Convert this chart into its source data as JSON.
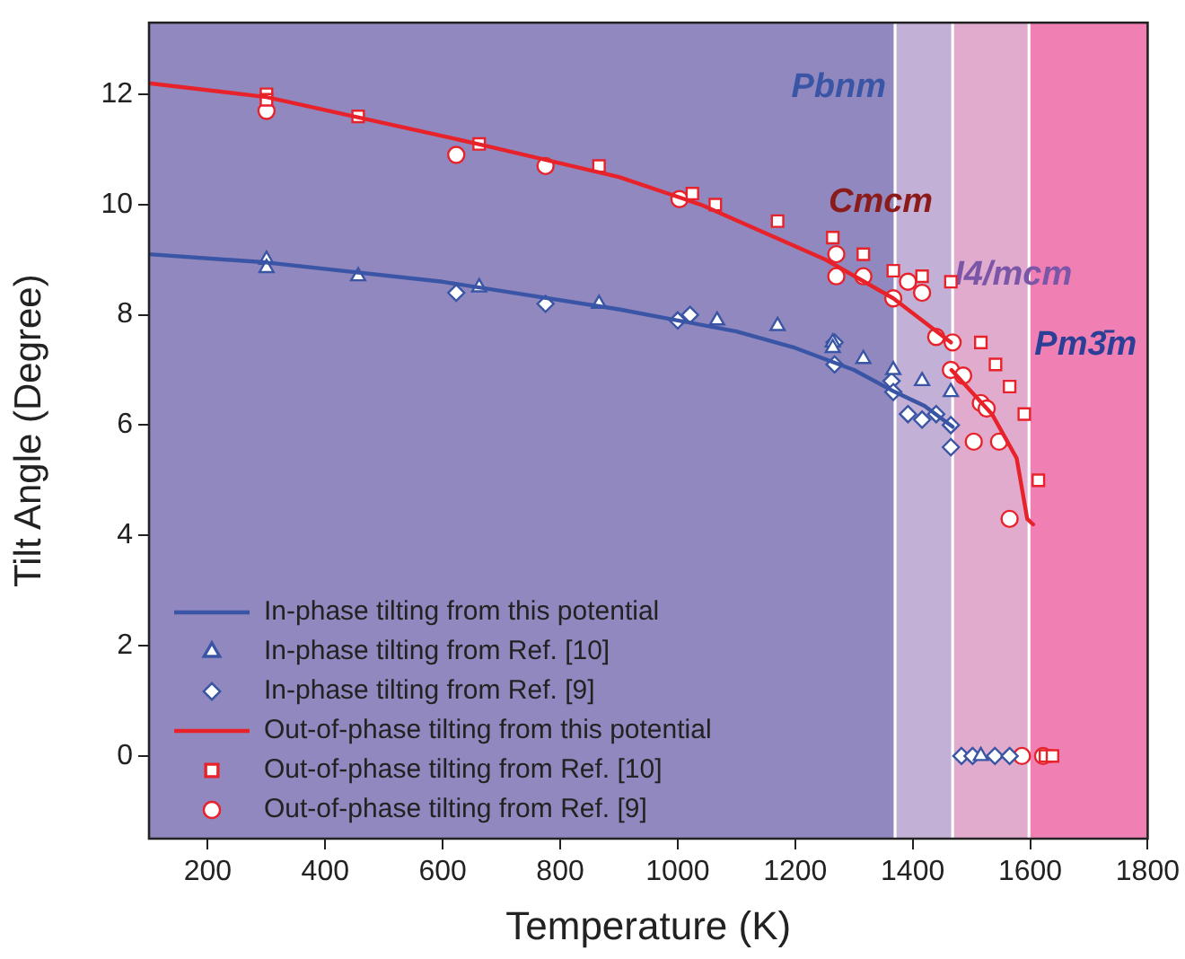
{
  "chart_data": {
    "type": "scatter",
    "xlabel": "Temperature (K)",
    "ylabel": "Tilt Angle (Degree)",
    "xlim": [
      100,
      1800
    ],
    "xticks": [
      200,
      400,
      600,
      800,
      1000,
      1200,
      1400,
      1600,
      1800
    ],
    "ylim": [
      -1.5,
      13.3
    ],
    "yticks": [
      0,
      2,
      4,
      6,
      8,
      10,
      12
    ],
    "grid": false,
    "legend": "bottom left",
    "bands": [
      {
        "axis": "x",
        "from": 100,
        "to": 1370,
        "label": "Pbnm",
        "color": "#9088be"
      },
      {
        "axis": "x",
        "from": 1370,
        "to": 1468,
        "label": "Cmcm",
        "color": "#c3b0d6"
      },
      {
        "axis": "x",
        "from": 1468,
        "to": 1598,
        "label": "I4/mcm",
        "color": "#e0abcd"
      },
      {
        "axis": "x",
        "from": 1598,
        "to": 1800,
        "label": "Pm3̄m",
        "color": "#f080b4"
      }
    ],
    "series": [
      {
        "name": "In-phase tilting from this potential",
        "type": "line",
        "marker": "none",
        "color": "#3a55a5",
        "x": [
          100,
          300,
          600,
          900,
          1000,
          1100,
          1200,
          1300,
          1370,
          1420,
          1468
        ],
        "values": [
          9.1,
          8.95,
          8.6,
          8.1,
          7.9,
          7.7,
          7.4,
          7.0,
          6.6,
          6.35,
          5.97
        ]
      },
      {
        "name": "In-phase tilting from Ref. [10]",
        "type": "scatter",
        "marker": "triangle",
        "color": "#3a55a5",
        "x": [
          300,
          300,
          456,
          662,
          866,
          1067,
          1170,
          1264,
          1264,
          1316,
          1367,
          1416,
          1465,
          1516
        ],
        "values": [
          9.0,
          8.85,
          8.7,
          8.5,
          8.2,
          7.9,
          7.8,
          7.5,
          7.4,
          7.2,
          7.0,
          6.8,
          6.6,
          0
        ]
      },
      {
        "name": "In-phase tilting from Ref. [9]",
        "type": "scatter",
        "marker": "diamond",
        "color": "#3a55a5",
        "x": [
          623,
          775,
          1000,
          1021,
          1267,
          1267,
          1364,
          1367,
          1392,
          1416,
          1440,
          1465,
          1465,
          1483,
          1502,
          1540,
          1565
        ],
        "values": [
          8.4,
          8.2,
          7.9,
          8.0,
          7.5,
          7.1,
          6.8,
          6.6,
          6.2,
          6.1,
          6.2,
          6.0,
          5.6,
          0,
          0,
          0,
          0
        ]
      },
      {
        "name": "Out-of-phase tilting from this potential",
        "type": "line",
        "marker": "none",
        "color": "#e8222a",
        "x": [
          100,
          300,
          660,
          900,
          1039,
          1252,
          1367,
          1465
        ],
        "values": [
          12.2,
          11.95,
          11.1,
          10.5,
          10.0,
          9.0,
          8.3,
          7.5
        ]
      },
      {
        "type": "line",
        "marker": "none",
        "color": "#e8222a",
        "x": [
          1466,
          1535,
          1577,
          1595,
          1605
        ],
        "values": [
          7.0,
          6.2,
          5.4,
          4.3,
          4.2
        ]
      },
      {
        "name": "Out-of-phase tilting from Ref. [10]",
        "type": "scatter",
        "marker": "square",
        "color": "#e8222a",
        "x": [
          300,
          300,
          456,
          662,
          866,
          1025,
          1064,
          1170,
          1264,
          1316,
          1367,
          1416,
          1465,
          1516,
          1541,
          1565,
          1590,
          1614,
          1626,
          1638
        ],
        "values": [
          12.0,
          11.9,
          11.6,
          11.1,
          10.7,
          10.2,
          10.0,
          9.7,
          9.4,
          9.1,
          8.8,
          8.7,
          8.6,
          7.5,
          7.1,
          6.7,
          6.2,
          5.0,
          0,
          0
        ]
      },
      {
        "name": "Out-of-phase tilting from Ref. [9]",
        "type": "scatter",
        "marker": "circle",
        "color": "#e8222a",
        "x": [
          300,
          623,
          775,
          1003,
          1270,
          1270,
          1316,
          1367,
          1392,
          1416,
          1440,
          1468,
          1465,
          1486,
          1516,
          1526,
          1504,
          1547,
          1565,
          1586,
          1622
        ],
        "values": [
          11.7,
          10.9,
          10.7,
          10.1,
          9.1,
          8.7,
          8.7,
          8.3,
          8.6,
          8.4,
          7.6,
          7.5,
          7.0,
          6.9,
          6.4,
          6.3,
          5.7,
          5.7,
          4.3,
          0,
          0
        ]
      }
    ]
  }
}
